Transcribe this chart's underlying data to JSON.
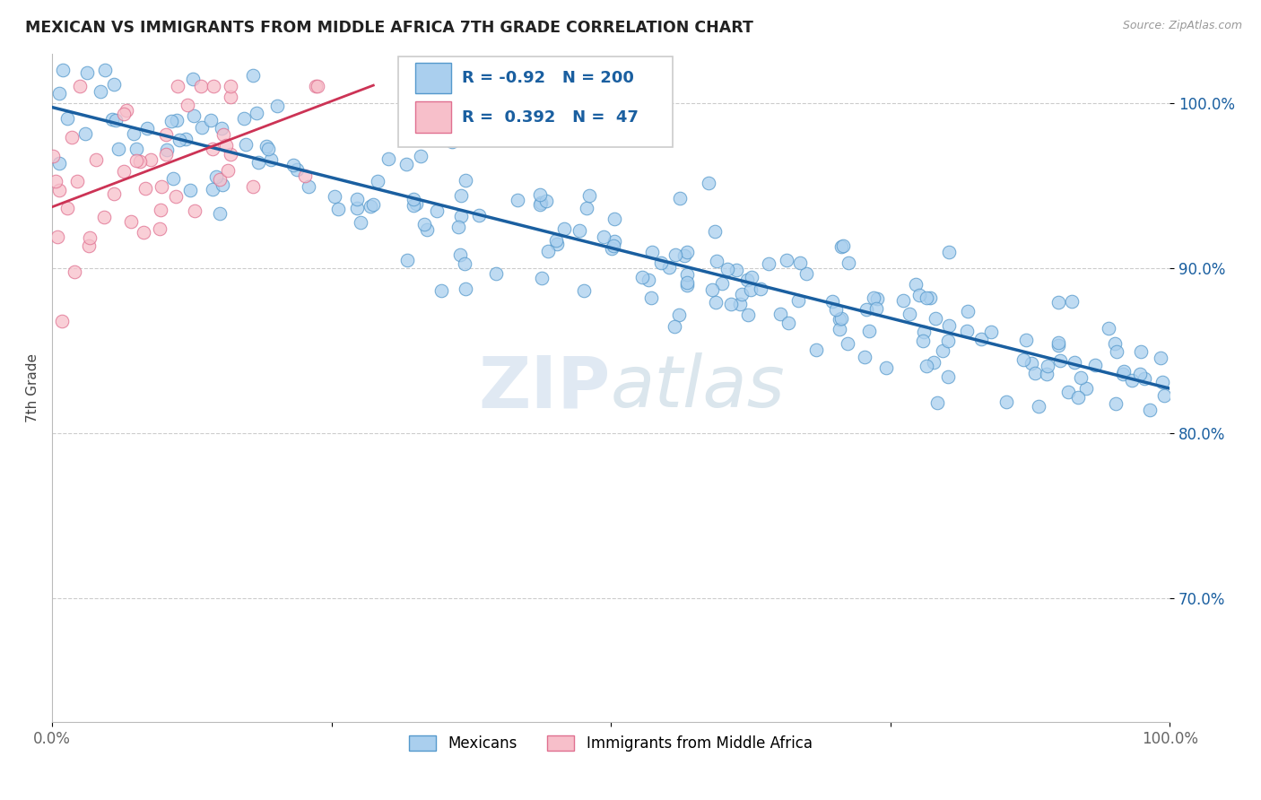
{
  "title": "MEXICAN VS IMMIGRANTS FROM MIDDLE AFRICA 7TH GRADE CORRELATION CHART",
  "source_text": "Source: ZipAtlas.com",
  "ylabel": "7th Grade",
  "blue_R": -0.92,
  "blue_N": 200,
  "pink_R": 0.392,
  "pink_N": 47,
  "blue_color": "#aacfee",
  "blue_edge_color": "#5599cc",
  "blue_line_color": "#1a5fa0",
  "pink_color": "#f7bfca",
  "pink_edge_color": "#e07090",
  "pink_line_color": "#cc3355",
  "watermark_color": "#c8d8ea",
  "legend_label_blue": "Mexicans",
  "legend_label_pink": "Immigrants from Middle Africa",
  "xlim": [
    0.0,
    1.0
  ],
  "ylim": [
    0.625,
    1.03
  ],
  "yticks": [
    0.7,
    0.8,
    0.9,
    1.0
  ],
  "ytick_labels": [
    "70.0%",
    "80.0%",
    "90.0%",
    "100.0%"
  ],
  "xticks": [
    0.0,
    0.25,
    0.5,
    0.75,
    1.0
  ],
  "xtick_labels": [
    "0.0%",
    "",
    "",
    "",
    "100.0%"
  ]
}
